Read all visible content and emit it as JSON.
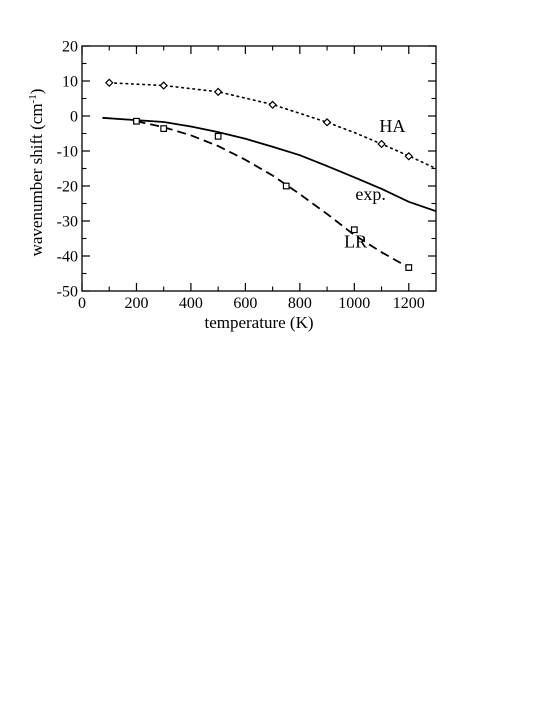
{
  "chart_data": {
    "type": "line",
    "xlabel": "temperature (K)",
    "ylabel": "wavenumber shift (cm",
    "ylabel_sup": "-1",
    "ylabel_end": ")",
    "xlim": [
      0,
      1300
    ],
    "ylim": [
      -50,
      20
    ],
    "x_ticks": [
      0,
      200,
      400,
      600,
      800,
      1000,
      1200
    ],
    "y_ticks": [
      20,
      10,
      0,
      -10,
      -20,
      -30,
      -40,
      -50
    ],
    "x_tick_labels": [
      "0",
      "200",
      "400",
      "600",
      "800",
      "1000",
      "1200"
    ],
    "y_tick_labels": [
      "20",
      "10",
      "0",
      "-10",
      "-20",
      "-30",
      "-40",
      "-50"
    ],
    "grid": false,
    "series": [
      {
        "name": "HA",
        "line_style": "dotted",
        "marker": "diamond",
        "curve": [
          [
            100,
            9.5
          ],
          [
            300,
            8.7
          ],
          [
            500,
            6.9
          ],
          [
            700,
            3.3
          ],
          [
            900,
            -1.8
          ],
          [
            1000,
            -4.7
          ],
          [
            1100,
            -8.0
          ],
          [
            1200,
            -11.4
          ],
          [
            1300,
            -15.0
          ]
        ],
        "points": [
          [
            100,
            9.5
          ],
          [
            300,
            8.7
          ],
          [
            500,
            6.9
          ],
          [
            700,
            3.2
          ],
          [
            900,
            -1.8
          ],
          [
            1100,
            -8.0
          ],
          [
            1200,
            -11.5
          ]
        ]
      },
      {
        "name": "exp.",
        "line_style": "solid",
        "marker": "none",
        "curve": [
          [
            75,
            -0.5
          ],
          [
            200,
            -1.2
          ],
          [
            300,
            -1.7
          ],
          [
            400,
            -3.0
          ],
          [
            500,
            -4.6
          ],
          [
            600,
            -6.5
          ],
          [
            700,
            -8.8
          ],
          [
            800,
            -11.2
          ],
          [
            900,
            -14.3
          ],
          [
            1000,
            -17.5
          ],
          [
            1100,
            -20.8
          ],
          [
            1200,
            -24.5
          ],
          [
            1300,
            -27.2
          ]
        ]
      },
      {
        "name": "LR",
        "line_style": "dashed",
        "marker": "square",
        "curve": [
          [
            200,
            -1.5
          ],
          [
            300,
            -3.2
          ],
          [
            400,
            -5.5
          ],
          [
            500,
            -8.6
          ],
          [
            600,
            -12.5
          ],
          [
            700,
            -17.0
          ],
          [
            800,
            -22.3
          ],
          [
            900,
            -28.0
          ],
          [
            1000,
            -34.0
          ],
          [
            1100,
            -38.9
          ],
          [
            1200,
            -43.3
          ]
        ],
        "points": [
          [
            200,
            -1.5
          ],
          [
            300,
            -3.6
          ],
          [
            500,
            -5.8
          ],
          [
            750,
            -20.0
          ],
          [
            1000,
            -32.5
          ],
          [
            1200,
            -43.3
          ]
        ]
      }
    ],
    "annotations": [
      {
        "text": "HA",
        "x": 1140,
        "y": -4.5
      },
      {
        "text": "exp.",
        "x": 1060,
        "y": -24.0
      },
      {
        "text": "LR",
        "x": 1005,
        "y": -37.5
      }
    ]
  }
}
